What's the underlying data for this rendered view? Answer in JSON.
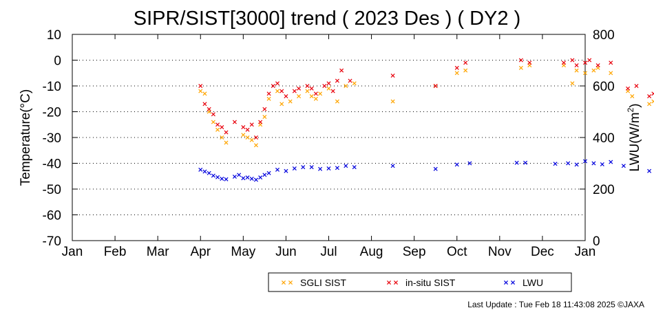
{
  "chart_data": {
    "type": "scatter",
    "title": "SIPR/SIST[3000] trend ( 2023 Des ) ( DY2 )",
    "ylabel": "Temperature(°C)",
    "y2label_main": "LWU(W/m",
    "y2label_sup": "2",
    "y2label_end": ")",
    "x_ticks": [
      "Jan",
      "Feb",
      "Mar",
      "Apr",
      "May",
      "Jun",
      "Jul",
      "Aug",
      "Sep",
      "Oct",
      "Nov",
      "Dec",
      "Jan"
    ],
    "y_ticks": [
      "10",
      "0",
      "-10",
      "-20",
      "-30",
      "-40",
      "-50",
      "-60",
      "-70"
    ],
    "y2_ticks": [
      "800",
      "600",
      "400",
      "200",
      "0"
    ],
    "ylim": [
      -70,
      10
    ],
    "y2lim": [
      0,
      800
    ],
    "grid": "horizontal dotted",
    "legend_position": "bottom-right",
    "series": [
      {
        "name": "SGLI SIST",
        "color": "#ffa500",
        "axis": "left",
        "points": [
          [
            3.0,
            -12
          ],
          [
            3.1,
            -13
          ],
          [
            3.2,
            -20
          ],
          [
            3.3,
            -24
          ],
          [
            3.4,
            -27
          ],
          [
            3.5,
            -30
          ],
          [
            3.6,
            -32
          ],
          [
            4.0,
            -29
          ],
          [
            4.1,
            -30
          ],
          [
            4.2,
            -31
          ],
          [
            4.3,
            -33
          ],
          [
            4.4,
            -25
          ],
          [
            4.5,
            -22
          ],
          [
            4.6,
            -15
          ],
          [
            4.8,
            -12
          ],
          [
            4.9,
            -17
          ],
          [
            5.1,
            -16
          ],
          [
            5.3,
            -14
          ],
          [
            5.5,
            -12
          ],
          [
            5.6,
            -14
          ],
          [
            5.7,
            -15
          ],
          [
            5.8,
            -13
          ],
          [
            6.0,
            -11
          ],
          [
            6.2,
            -16
          ],
          [
            6.4,
            -10
          ],
          [
            6.6,
            -9
          ],
          [
            7.5,
            -16
          ],
          [
            8.5,
            -10
          ],
          [
            9.0,
            -5
          ],
          [
            9.2,
            -4
          ],
          [
            10.5,
            -3
          ],
          [
            10.7,
            -2
          ],
          [
            11.5,
            -2
          ],
          [
            11.7,
            -9
          ],
          [
            11.8,
            -4
          ],
          [
            12.0,
            -5
          ],
          [
            12.2,
            -4
          ],
          [
            12.3,
            -3
          ],
          [
            12.6,
            -5
          ],
          [
            13.0,
            -12
          ],
          [
            13.1,
            -14
          ],
          [
            13.5,
            -17
          ],
          [
            13.6,
            -16
          ],
          [
            13.7,
            -15
          ],
          [
            13.9,
            -18
          ],
          [
            14.0,
            -20
          ],
          [
            14.2,
            -18
          ],
          [
            14.3,
            -21
          ],
          [
            14.4,
            -22
          ],
          [
            14.6,
            -21
          ],
          [
            14.7,
            -24
          ]
        ]
      },
      {
        "name": "in-situ SIST",
        "color": "#e8000b",
        "axis": "left",
        "points": [
          [
            3.0,
            -10
          ],
          [
            3.1,
            -17
          ],
          [
            3.2,
            -19
          ],
          [
            3.3,
            -21
          ],
          [
            3.4,
            -25
          ],
          [
            3.5,
            -26
          ],
          [
            3.6,
            -28
          ],
          [
            3.8,
            -24
          ],
          [
            4.0,
            -26
          ],
          [
            4.1,
            -27
          ],
          [
            4.2,
            -25
          ],
          [
            4.3,
            -30
          ],
          [
            4.4,
            -24
          ],
          [
            4.5,
            -19
          ],
          [
            4.6,
            -13
          ],
          [
            4.7,
            -10
          ],
          [
            4.8,
            -9
          ],
          [
            4.9,
            -12
          ],
          [
            5.0,
            -14
          ],
          [
            5.2,
            -12
          ],
          [
            5.3,
            -11
          ],
          [
            5.5,
            -10
          ],
          [
            5.6,
            -11
          ],
          [
            5.7,
            -13
          ],
          [
            5.9,
            -10
          ],
          [
            6.0,
            -9
          ],
          [
            6.1,
            -12
          ],
          [
            6.2,
            -8
          ],
          [
            6.3,
            -4
          ],
          [
            6.5,
            -8
          ],
          [
            7.5,
            -6
          ],
          [
            8.5,
            -10
          ],
          [
            9.0,
            -3
          ],
          [
            9.2,
            -1
          ],
          [
            10.5,
            0
          ],
          [
            10.7,
            -1
          ],
          [
            11.5,
            -1
          ],
          [
            11.7,
            0
          ],
          [
            11.8,
            -2
          ],
          [
            12.0,
            -1
          ],
          [
            12.1,
            0
          ],
          [
            12.3,
            -2
          ],
          [
            12.6,
            -1
          ],
          [
            13.0,
            -11
          ],
          [
            13.2,
            -10
          ],
          [
            13.5,
            -14
          ],
          [
            13.6,
            -13
          ],
          [
            13.8,
            -16
          ],
          [
            13.9,
            -17
          ],
          [
            14.1,
            -15
          ],
          [
            14.3,
            -18
          ],
          [
            14.4,
            -20
          ],
          [
            14.6,
            -18
          ]
        ]
      },
      {
        "name": "LWU",
        "color": "#0000dd",
        "axis": "right",
        "points": [
          [
            3.0,
            275
          ],
          [
            3.1,
            268
          ],
          [
            3.2,
            262
          ],
          [
            3.3,
            252
          ],
          [
            3.4,
            246
          ],
          [
            3.5,
            240
          ],
          [
            3.6,
            238
          ],
          [
            3.8,
            248
          ],
          [
            3.9,
            255
          ],
          [
            4.0,
            242
          ],
          [
            4.1,
            245
          ],
          [
            4.2,
            240
          ],
          [
            4.3,
            236
          ],
          [
            4.4,
            245
          ],
          [
            4.5,
            255
          ],
          [
            4.6,
            262
          ],
          [
            4.8,
            275
          ],
          [
            5.0,
            270
          ],
          [
            5.2,
            280
          ],
          [
            5.4,
            285
          ],
          [
            5.6,
            285
          ],
          [
            5.8,
            278
          ],
          [
            6.0,
            280
          ],
          [
            6.2,
            282
          ],
          [
            6.4,
            290
          ],
          [
            6.6,
            285
          ],
          [
            7.5,
            290
          ],
          [
            8.5,
            278
          ],
          [
            9.0,
            295
          ],
          [
            9.3,
            300
          ],
          [
            10.4,
            302
          ],
          [
            10.6,
            302
          ],
          [
            11.3,
            298
          ],
          [
            11.6,
            300
          ],
          [
            11.8,
            295
          ],
          [
            12.0,
            308
          ],
          [
            12.2,
            300
          ],
          [
            12.4,
            296
          ],
          [
            12.6,
            305
          ],
          [
            12.9,
            290
          ],
          [
            13.5,
            270
          ],
          [
            13.7,
            265
          ],
          [
            13.9,
            255
          ],
          [
            14.1,
            258
          ],
          [
            14.3,
            262
          ],
          [
            14.5,
            250
          ],
          [
            14.7,
            245
          ]
        ]
      }
    ],
    "legend_labels": [
      "SGLI SIST",
      "in-situ SIST",
      "LWU"
    ]
  },
  "footer": "Last Update : Tue Feb 18 11:43:08 2025  ©JAXA"
}
